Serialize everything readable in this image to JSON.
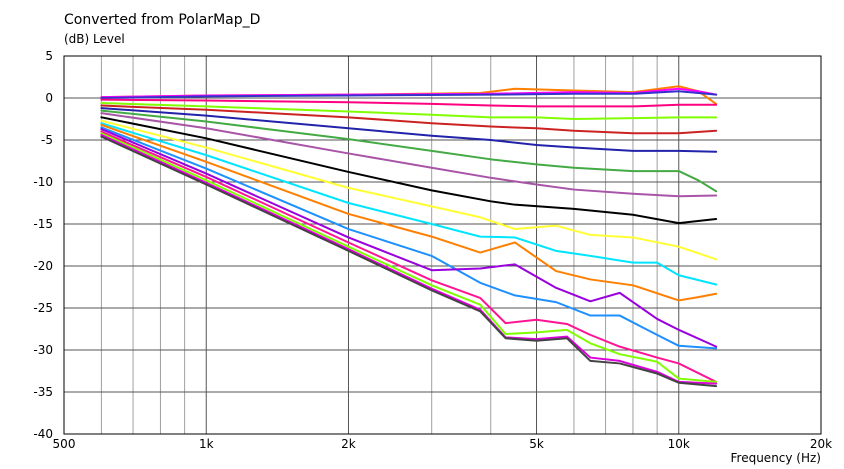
{
  "chart_data": {
    "type": "line",
    "title": "Converted from PolarMap_D",
    "ylabel": "(dB)  Level",
    "xlabel": "Frequency  (Hz)",
    "xscale": "log",
    "xlim": [
      500,
      20000
    ],
    "ylim": [
      -40,
      5
    ],
    "grid": true,
    "legend": "none",
    "xticks": [
      {
        "value": 500,
        "label": "500"
      },
      {
        "value": 1000,
        "label": "1k"
      },
      {
        "value": 2000,
        "label": "2k"
      },
      {
        "value": 5000,
        "label": "5k"
      },
      {
        "value": 10000,
        "label": "10k"
      },
      {
        "value": 20000,
        "label": "20k"
      }
    ],
    "yticks": [
      {
        "value": 5,
        "label": "5"
      },
      {
        "value": 0,
        "label": "0"
      },
      {
        "value": -5,
        "label": "-5"
      },
      {
        "value": -10,
        "label": "-10"
      },
      {
        "value": -15,
        "label": "-15"
      },
      {
        "value": -20,
        "label": "-20"
      },
      {
        "value": -25,
        "label": "-25"
      },
      {
        "value": -30,
        "label": "-30"
      },
      {
        "value": -35,
        "label": "-35"
      },
      {
        "value": -40,
        "label": "-40"
      }
    ],
    "series": [
      {
        "color": "#ff8000",
        "x": [
          600,
          1000,
          2000,
          3800,
          4500,
          6000,
          8000,
          10000,
          11000,
          12000
        ],
        "y": [
          0.1,
          0.3,
          0.4,
          0.6,
          1.1,
          0.9,
          0.7,
          1.4,
          0.8,
          -0.7
        ]
      },
      {
        "color": "#ff00ff",
        "x": [
          600,
          1000,
          2000,
          4000,
          6000,
          8000,
          10000,
          11000,
          12000
        ],
        "y": [
          0.1,
          0.3,
          0.4,
          0.5,
          0.7,
          0.6,
          1.1,
          0.8,
          0.4
        ]
      },
      {
        "color": "#3333cc",
        "x": [
          600,
          1000,
          2000,
          4000,
          6000,
          8000,
          10000,
          11000,
          12000
        ],
        "y": [
          0.0,
          0.2,
          0.3,
          0.4,
          0.5,
          0.5,
          0.8,
          0.6,
          0.4
        ]
      },
      {
        "color": "#ff0080",
        "x": [
          600,
          1000,
          2000,
          3000,
          4000,
          5000,
          8000,
          10000,
          12000
        ],
        "y": [
          -0.2,
          -0.3,
          -0.5,
          -0.7,
          -0.9,
          -1.0,
          -1.0,
          -0.8,
          -0.8
        ]
      },
      {
        "color": "#80ff00",
        "x": [
          600,
          1000,
          2000,
          3000,
          4000,
          5000,
          6000,
          8000,
          10000,
          12000
        ],
        "y": [
          -0.6,
          -1.0,
          -1.6,
          -2.0,
          -2.3,
          -2.3,
          -2.5,
          -2.4,
          -2.3,
          -2.3
        ]
      },
      {
        "color": "#cc2222",
        "x": [
          600,
          1000,
          2000,
          3000,
          4000,
          5000,
          6000,
          8000,
          10000,
          12000
        ],
        "y": [
          -0.9,
          -1.4,
          -2.3,
          -3.0,
          -3.4,
          -3.6,
          -3.9,
          -4.2,
          -4.2,
          -3.9
        ]
      },
      {
        "color": "#2222aa",
        "x": [
          600,
          1000,
          2000,
          3000,
          4000,
          5000,
          6000,
          8000,
          10000,
          12000
        ],
        "y": [
          -1.2,
          -2.1,
          -3.6,
          -4.5,
          -5.0,
          -5.6,
          -5.9,
          -6.3,
          -6.3,
          -6.4
        ]
      },
      {
        "color": "#44aa44",
        "x": [
          600,
          1000,
          2000,
          3000,
          4000,
          5000,
          6000,
          8000,
          10000,
          11000,
          12000
        ],
        "y": [
          -1.5,
          -2.8,
          -4.9,
          -6.3,
          -7.3,
          -7.9,
          -8.3,
          -8.7,
          -8.7,
          -9.8,
          -11.1
        ]
      },
      {
        "color": "#a855a8",
        "x": [
          600,
          1000,
          2000,
          3000,
          4000,
          5000,
          6000,
          8000,
          10000,
          12000
        ],
        "y": [
          -1.8,
          -3.6,
          -6.6,
          -8.3,
          -9.5,
          -10.3,
          -10.9,
          -11.4,
          -11.7,
          -11.6
        ]
      },
      {
        "color": "#000000",
        "x": [
          600,
          1000,
          2000,
          3000,
          4000,
          4500,
          6000,
          8000,
          10000,
          12000
        ],
        "y": [
          -2.3,
          -4.8,
          -8.8,
          -11.0,
          -12.3,
          -12.7,
          -13.2,
          -13.9,
          -14.9,
          -14.4
        ]
      },
      {
        "color": "#ffff33",
        "x": [
          600,
          1000,
          2000,
          3000,
          3800,
          4500,
          5500,
          6500,
          8000,
          10000,
          12000
        ],
        "y": [
          -2.7,
          -5.9,
          -10.7,
          -12.9,
          -14.2,
          -15.6,
          -15.2,
          -16.3,
          -16.6,
          -17.7,
          -19.2
        ]
      },
      {
        "color": "#00e5ff",
        "x": [
          600,
          1000,
          2000,
          3000,
          3800,
          4500,
          5500,
          6500,
          8000,
          9000,
          10000,
          12000
        ],
        "y": [
          -3.0,
          -6.8,
          -12.5,
          -15.0,
          -16.5,
          -16.6,
          -18.2,
          -18.8,
          -19.6,
          -19.6,
          -21.1,
          -22.2
        ]
      },
      {
        "color": "#ff7f00",
        "x": [
          600,
          1000,
          2000,
          3000,
          3800,
          4500,
          5500,
          6500,
          8000,
          10000,
          11000,
          12000
        ],
        "y": [
          -3.2,
          -7.6,
          -13.8,
          -16.5,
          -18.4,
          -17.2,
          -20.6,
          -21.6,
          -22.3,
          -24.1,
          -23.7,
          -23.3
        ]
      },
      {
        "color": "#1e90ff",
        "x": [
          600,
          1000,
          2000,
          3000,
          3800,
          4500,
          5500,
          6500,
          7500,
          9000,
          10000,
          12000
        ],
        "y": [
          -3.5,
          -8.4,
          -15.6,
          -18.8,
          -22.0,
          -23.5,
          -24.3,
          -25.9,
          -25.9,
          -28.2,
          -29.5,
          -29.8
        ]
      },
      {
        "color": "#9900dd",
        "x": [
          600,
          1000,
          2000,
          3000,
          3800,
          4500,
          5500,
          6500,
          7500,
          9000,
          10000,
          12000
        ],
        "y": [
          -3.7,
          -9.0,
          -16.6,
          -20.5,
          -20.3,
          -19.8,
          -22.6,
          -24.2,
          -23.2,
          -26.3,
          -27.6,
          -29.6
        ]
      },
      {
        "color": "#ff1493",
        "x": [
          600,
          1000,
          2000,
          3000,
          3800,
          4300,
          5000,
          5800,
          6500,
          7500,
          9000,
          10000,
          12000
        ],
        "y": [
          -4.0,
          -9.4,
          -17.2,
          -21.7,
          -23.8,
          -26.8,
          -26.4,
          -26.9,
          -28.2,
          -29.6,
          -30.9,
          -31.6,
          -33.8
        ]
      },
      {
        "color": "#80ff00",
        "x": [
          600,
          1000,
          2000,
          3000,
          3800,
          4300,
          5000,
          5800,
          6500,
          7500,
          9000,
          10000,
          12000
        ],
        "y": [
          -4.2,
          -9.8,
          -17.7,
          -22.3,
          -24.6,
          -28.1,
          -27.9,
          -27.6,
          -29.2,
          -30.5,
          -31.4,
          -33.4,
          -33.8
        ]
      },
      {
        "color": "#dd00dd",
        "x": [
          600,
          1000,
          2000,
          3000,
          3800,
          4300,
          5000,
          5800,
          6500,
          7500,
          9000,
          10000,
          12000
        ],
        "y": [
          -4.4,
          -10.1,
          -18.0,
          -22.7,
          -25.2,
          -28.5,
          -28.7,
          -28.4,
          -30.9,
          -31.3,
          -32.6,
          -33.8,
          -34.0
        ]
      },
      {
        "color": "#444444",
        "x": [
          600,
          1000,
          2000,
          3000,
          3800,
          4300,
          5000,
          5800,
          6500,
          7500,
          9000,
          10000,
          12000
        ],
        "y": [
          -4.6,
          -10.3,
          -18.2,
          -22.9,
          -25.4,
          -28.6,
          -28.9,
          -28.6,
          -31.3,
          -31.6,
          -32.8,
          -33.9,
          -34.3
        ]
      }
    ]
  }
}
